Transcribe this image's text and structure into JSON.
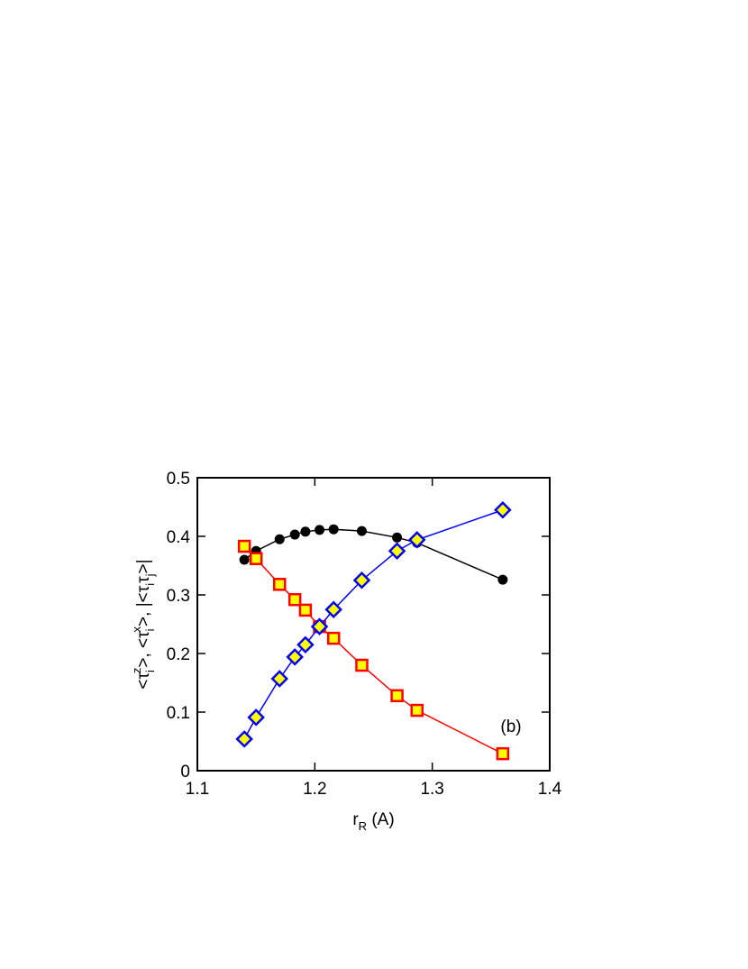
{
  "chart_data": {
    "type": "line",
    "xlabel": [
      {
        "text": "r",
        "pos": "base"
      },
      {
        "text": "R",
        "pos": "sub"
      },
      {
        "text": " (A)",
        "pos": "base"
      }
    ],
    "ylabel": [
      {
        "text": "<τ",
        "pos": "base"
      },
      {
        "text": "i",
        "pos": "sub"
      },
      {
        "text": "z",
        "pos": "sup"
      },
      {
        "text": ">, <τ",
        "pos": "base"
      },
      {
        "text": "i",
        "pos": "sub"
      },
      {
        "text": "x",
        "pos": "sup"
      },
      {
        "text": ">, |<τ",
        "pos": "base"
      },
      {
        "text": "i",
        "pos": "sub"
      },
      {
        "text": "τ",
        "pos": "base"
      },
      {
        "text": "j",
        "pos": "sub"
      },
      {
        "text": ">|",
        "pos": "base"
      }
    ],
    "annotation": "(b)",
    "xlim": [
      1.1,
      1.4
    ],
    "xticks": [
      1.1,
      1.2,
      1.3,
      1.4
    ],
    "ylim": [
      0,
      0.5
    ],
    "yticks": [
      0,
      0.1,
      0.2,
      0.3,
      0.4,
      0.5
    ],
    "x": [
      1.14,
      1.15,
      1.17,
      1.183,
      1.192,
      1.204,
      1.216,
      1.24,
      1.27,
      1.287,
      1.36
    ],
    "series": [
      {
        "color": "#000000",
        "marker": "circle",
        "values": [
          0.36,
          0.375,
          0.395,
          0.403,
          0.408,
          0.411,
          0.412,
          0.409,
          0.398,
          0.389,
          0.326
        ]
      },
      {
        "color": "#ff0000",
        "marker": "square",
        "values": [
          0.383,
          0.362,
          0.318,
          0.292,
          0.274,
          0.246,
          0.226,
          0.18,
          0.128,
          0.103,
          0.029
        ]
      },
      {
        "color": "#0000ff",
        "marker": "diamond",
        "values": [
          0.054,
          0.091,
          0.157,
          0.194,
          0.215,
          0.246,
          0.275,
          0.325,
          0.375,
          0.394,
          0.445
        ]
      }
    ]
  }
}
